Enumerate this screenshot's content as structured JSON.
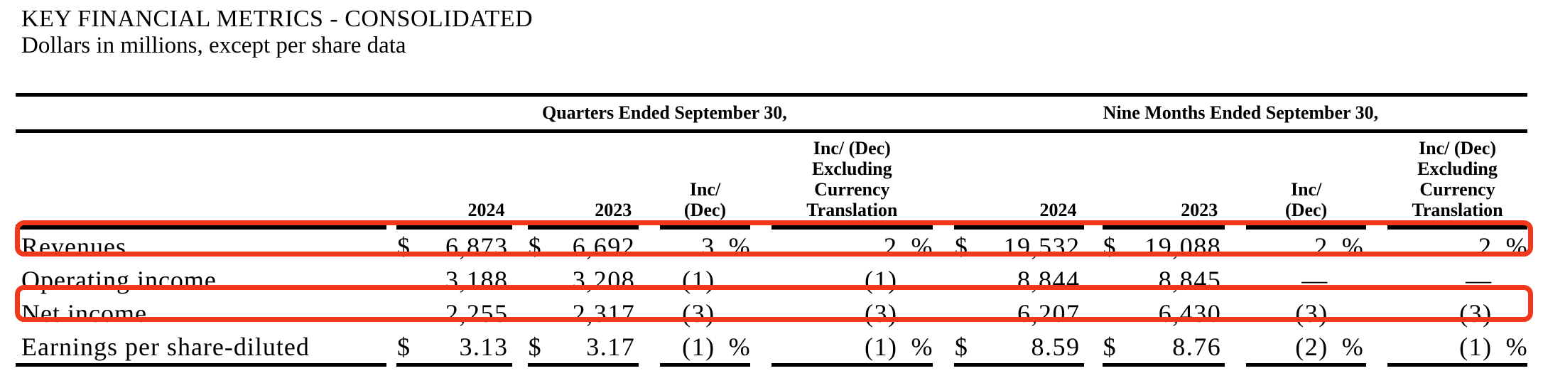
{
  "title": "KEY FINANCIAL METRICS - CONSOLIDATED",
  "subtitle": "Dollars in millions, except per share data",
  "table": {
    "groups": [
      {
        "label": "Quarters Ended September 30,"
      },
      {
        "label": "Nine Months Ended September 30,"
      }
    ],
    "col_headers": {
      "year_current": "2024",
      "year_prior": "2023",
      "inc_dec_lines": [
        "Inc/",
        "(Dec)"
      ],
      "fx_lines": [
        "Inc/ (Dec)",
        "Excluding",
        "Currency",
        "Translation"
      ]
    },
    "rows": [
      {
        "label": "Revenues",
        "highlighted": true,
        "cells": [
          "$",
          "6,873",
          "$",
          "6,692",
          "3",
          "%",
          "2",
          "%",
          "$",
          "19,532",
          "$",
          "19,088",
          "2",
          "%",
          "2",
          "%"
        ]
      },
      {
        "label": "Operating income",
        "highlighted": false,
        "cells": [
          "",
          "3,188",
          "",
          "3,208",
          "(1)",
          "",
          "(1)",
          "",
          "",
          "8,844",
          "",
          "8,845",
          "—",
          "",
          "—",
          ""
        ]
      },
      {
        "label": "Net income",
        "highlighted": true,
        "cells": [
          "",
          "2,255",
          "",
          "2,317",
          "(3)",
          "",
          "(3)",
          "",
          "",
          "6,207",
          "",
          "6,430",
          "(3)",
          "",
          "(3)",
          ""
        ]
      },
      {
        "label": "Earnings per share-diluted",
        "highlighted": false,
        "cells": [
          "$",
          "3.13",
          "$",
          "3.17",
          "(1)",
          "%",
          "(1)",
          "%",
          "$",
          "8.59",
          "$",
          "8.76",
          "(2)",
          "%",
          "(1)",
          "%"
        ]
      }
    ]
  },
  "annotations": {
    "highlight_color": "#f2381c",
    "highlighted_rows": [
      "Revenues",
      "Net income"
    ]
  }
}
